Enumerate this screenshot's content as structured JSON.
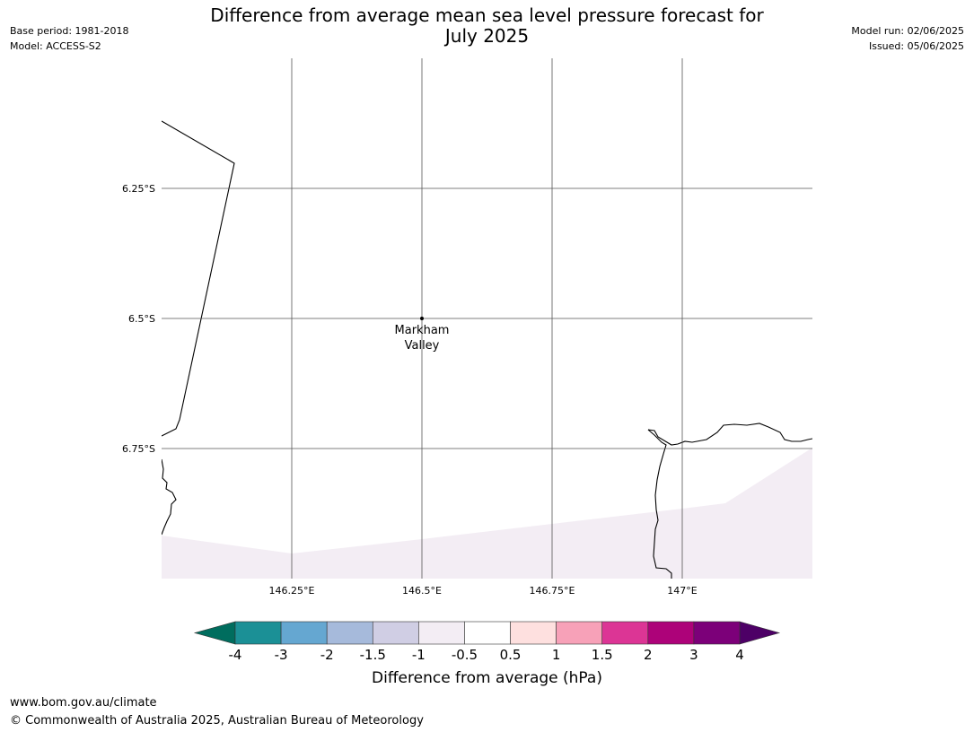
{
  "title": {
    "line1": "Difference from average mean sea level pressure forecast for",
    "line2": "July 2025"
  },
  "meta_left": {
    "base_period": "Base period: 1981-2018",
    "model": "Model: ACCESS-S2"
  },
  "meta_right": {
    "model_run": "Model run: 02/06/2025",
    "issued": "Issued: 05/06/2025"
  },
  "map": {
    "lon_range": [
      146.0,
      147.25
    ],
    "lat_range": [
      -6.0,
      -7.0
    ],
    "lon_gridlines": [
      146.25,
      146.5,
      146.75,
      147.0
    ],
    "lon_labels": [
      "146.25°E",
      "146.5°E",
      "146.75°E",
      "147°E"
    ],
    "lat_gridlines": [
      -6.25,
      -6.5,
      -6.75
    ],
    "lat_labels": [
      "6.25°S",
      "6.5°S",
      "6.75°S"
    ],
    "place": {
      "name_line1": "Markham",
      "name_line2": "Valley",
      "lon": 146.5,
      "lat": -6.5
    },
    "anomaly_fill_color": "#f3edf4",
    "coastline_color": "#000000",
    "grid_color": "#555555"
  },
  "colorbar": {
    "title": "Difference from average (hPa)",
    "ticks": [
      "-4",
      "-3",
      "-2",
      "-1.5",
      "-1",
      "-0.5",
      "0.5",
      "1",
      "1.5",
      "2",
      "3",
      "4"
    ],
    "low_extend_color": "#006d5e",
    "high_extend_color": "#4d0066",
    "colors": [
      "#1b9096",
      "#65a7d1",
      "#a6badb",
      "#d0cee4",
      "#f3edf4",
      "#ffffff",
      "#fee0df",
      "#f7a1b8",
      "#dc3595",
      "#ad0279",
      "#7c0079"
    ]
  },
  "footer": {
    "url": "www.bom.gov.au/climate",
    "copyright": "© Commonwealth of Australia 2025, Australian Bureau of Meteorology"
  }
}
